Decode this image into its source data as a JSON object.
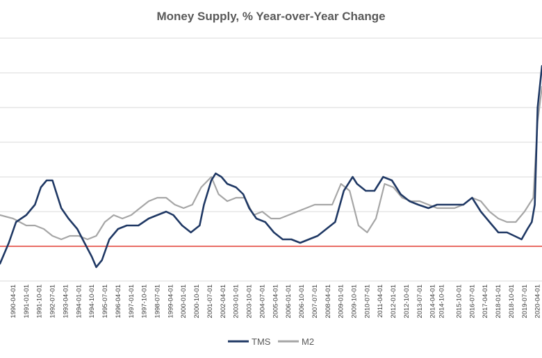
{
  "chart_data": {
    "type": "line",
    "title": "Money Supply, % Year-over-Year Change",
    "xlabel": "",
    "ylabel": "",
    "grid": true,
    "legend_position": "bottom",
    "x_start": "1989-07-01",
    "x_end": "2020-07-01",
    "x_tick_labels": [
      "1990-04-01",
      "1991-01-01",
      "1991-10-01",
      "1992-07-01",
      "1993-04-01",
      "1994-01-01",
      "1994-10-01",
      "1995-07-01",
      "1996-04-01",
      "1997-01-01",
      "1997-10-01",
      "1998-07-01",
      "1999-04-01",
      "2000-01-01",
      "2000-10-01",
      "2001-07-01",
      "2002-04-01",
      "2003-01-01",
      "2003-10-01",
      "2004-07-01",
      "2005-04-01",
      "2006-01-01",
      "2006-10-01",
      "2007-07-01",
      "2008-04-01",
      "2009-01-01",
      "2009-10-01",
      "2010-07-01",
      "2011-04-01",
      "2012-01-01",
      "2012-10-01",
      "2013-07-01",
      "2014-04-01",
      "2014-10-01",
      "2015-10-01",
      "2016-07-01",
      "2017-04-01",
      "2018-01-01",
      "2018-10-01",
      "2019-07-01",
      "2020-04-01"
    ],
    "reference_line": {
      "y": 0,
      "color": "#e03c31"
    },
    "ylim": [
      -5,
      30
    ],
    "series": [
      {
        "name": "TMS",
        "color": "#1f3864",
        "points": [
          [
            "1989-07-01",
            -2.5
          ],
          [
            "1990-01-01",
            0.5
          ],
          [
            "1990-06-01",
            3.5
          ],
          [
            "1991-01-01",
            4.5
          ],
          [
            "1991-07-01",
            6.0
          ],
          [
            "1991-11-01",
            8.5
          ],
          [
            "1992-03-01",
            9.5
          ],
          [
            "1992-07-01",
            9.5
          ],
          [
            "1992-10-01",
            7.5
          ],
          [
            "1993-01-01",
            5.5
          ],
          [
            "1993-06-01",
            4.0
          ],
          [
            "1993-12-01",
            2.5
          ],
          [
            "1994-05-01",
            0.5
          ],
          [
            "1994-10-01",
            -1.5
          ],
          [
            "1995-01-01",
            -3.0
          ],
          [
            "1995-05-01",
            -2.0
          ],
          [
            "1995-10-01",
            1.0
          ],
          [
            "1996-04-01",
            2.5
          ],
          [
            "1996-10-01",
            3.0
          ],
          [
            "1997-06-01",
            3.0
          ],
          [
            "1998-01-01",
            4.0
          ],
          [
            "1998-07-01",
            4.5
          ],
          [
            "1999-01-01",
            5.0
          ],
          [
            "1999-06-01",
            4.5
          ],
          [
            "1999-12-01",
            3.0
          ],
          [
            "2000-06-01",
            2.0
          ],
          [
            "2000-12-01",
            3.0
          ],
          [
            "2001-03-01",
            6.0
          ],
          [
            "2001-08-01",
            9.5
          ],
          [
            "2001-11-01",
            10.5
          ],
          [
            "2002-03-01",
            10.0
          ],
          [
            "2002-07-01",
            9.0
          ],
          [
            "2003-01-01",
            8.5
          ],
          [
            "2003-06-01",
            7.5
          ],
          [
            "2003-10-01",
            5.5
          ],
          [
            "2004-03-01",
            4.0
          ],
          [
            "2004-09-01",
            3.5
          ],
          [
            "2005-03-01",
            2.0
          ],
          [
            "2005-09-01",
            1.0
          ],
          [
            "2006-03-01",
            1.0
          ],
          [
            "2006-09-01",
            0.5
          ],
          [
            "2007-03-01",
            1.0
          ],
          [
            "2007-09-01",
            1.5
          ],
          [
            "2008-03-01",
            2.5
          ],
          [
            "2008-09-01",
            3.5
          ],
          [
            "2009-03-01",
            8.0
          ],
          [
            "2009-09-01",
            10.0
          ],
          [
            "2009-12-01",
            9.0
          ],
          [
            "2010-06-01",
            8.0
          ],
          [
            "2010-12-01",
            8.0
          ],
          [
            "2011-06-01",
            10.0
          ],
          [
            "2011-12-01",
            9.5
          ],
          [
            "2012-06-01",
            7.5
          ],
          [
            "2012-12-01",
            6.5
          ],
          [
            "2013-06-01",
            6.0
          ],
          [
            "2014-01-01",
            5.5
          ],
          [
            "2014-07-01",
            6.0
          ],
          [
            "2015-01-01",
            6.0
          ],
          [
            "2015-07-01",
            6.0
          ],
          [
            "2016-01-01",
            6.0
          ],
          [
            "2016-07-01",
            7.0
          ],
          [
            "2017-01-01",
            5.0
          ],
          [
            "2017-07-01",
            3.5
          ],
          [
            "2018-01-01",
            2.0
          ],
          [
            "2018-07-01",
            2.0
          ],
          [
            "2018-12-01",
            1.5
          ],
          [
            "2019-05-01",
            1.0
          ],
          [
            "2019-09-01",
            2.5
          ],
          [
            "2019-12-01",
            3.5
          ],
          [
            "2020-02-01",
            6.0
          ],
          [
            "2020-04-01",
            20.0
          ],
          [
            "2020-07-01",
            26.0
          ]
        ]
      },
      {
        "name": "M2",
        "color": "#a6a6a6",
        "points": [
          [
            "1989-07-01",
            4.5
          ],
          [
            "1990-04-01",
            4.0
          ],
          [
            "1991-01-01",
            3.0
          ],
          [
            "1991-07-01",
            3.0
          ],
          [
            "1992-01-01",
            2.5
          ],
          [
            "1992-07-01",
            1.5
          ],
          [
            "1993-01-01",
            1.0
          ],
          [
            "1993-07-01",
            1.5
          ],
          [
            "1994-01-01",
            1.5
          ],
          [
            "1994-07-01",
            1.0
          ],
          [
            "1995-01-01",
            1.5
          ],
          [
            "1995-07-01",
            3.5
          ],
          [
            "1996-01-01",
            4.5
          ],
          [
            "1996-07-01",
            4.0
          ],
          [
            "1997-01-01",
            4.5
          ],
          [
            "1997-07-01",
            5.5
          ],
          [
            "1998-01-01",
            6.5
          ],
          [
            "1998-07-01",
            7.0
          ],
          [
            "1999-01-01",
            7.0
          ],
          [
            "1999-07-01",
            6.0
          ],
          [
            "2000-01-01",
            5.5
          ],
          [
            "2000-07-01",
            6.0
          ],
          [
            "2001-01-01",
            8.5
          ],
          [
            "2001-08-01",
            10.0
          ],
          [
            "2002-01-01",
            7.5
          ],
          [
            "2002-07-01",
            6.5
          ],
          [
            "2003-01-01",
            7.0
          ],
          [
            "2003-07-01",
            7.0
          ],
          [
            "2004-01-01",
            4.5
          ],
          [
            "2004-07-01",
            5.0
          ],
          [
            "2005-01-01",
            4.0
          ],
          [
            "2005-07-01",
            4.0
          ],
          [
            "2006-01-01",
            4.5
          ],
          [
            "2006-07-01",
            5.0
          ],
          [
            "2007-01-01",
            5.5
          ],
          [
            "2007-07-01",
            6.0
          ],
          [
            "2008-01-01",
            6.0
          ],
          [
            "2008-07-01",
            6.0
          ],
          [
            "2009-01-01",
            9.0
          ],
          [
            "2009-07-01",
            8.0
          ],
          [
            "2010-01-01",
            3.0
          ],
          [
            "2010-07-01",
            2.0
          ],
          [
            "2011-01-01",
            4.0
          ],
          [
            "2011-07-01",
            9.0
          ],
          [
            "2012-01-01",
            8.5
          ],
          [
            "2012-07-01",
            7.0
          ],
          [
            "2013-01-01",
            6.5
          ],
          [
            "2013-07-01",
            6.5
          ],
          [
            "2014-01-01",
            6.0
          ],
          [
            "2014-07-01",
            5.5
          ],
          [
            "2015-01-01",
            5.5
          ],
          [
            "2015-07-01",
            5.5
          ],
          [
            "2016-01-01",
            6.0
          ],
          [
            "2016-07-01",
            7.0
          ],
          [
            "2017-01-01",
            6.5
          ],
          [
            "2017-07-01",
            5.0
          ],
          [
            "2018-01-01",
            4.0
          ],
          [
            "2018-07-01",
            3.5
          ],
          [
            "2019-01-01",
            3.5
          ],
          [
            "2019-07-01",
            5.0
          ],
          [
            "2020-01-01",
            7.0
          ],
          [
            "2020-04-01",
            18.0
          ],
          [
            "2020-07-01",
            23.0
          ]
        ]
      }
    ]
  }
}
